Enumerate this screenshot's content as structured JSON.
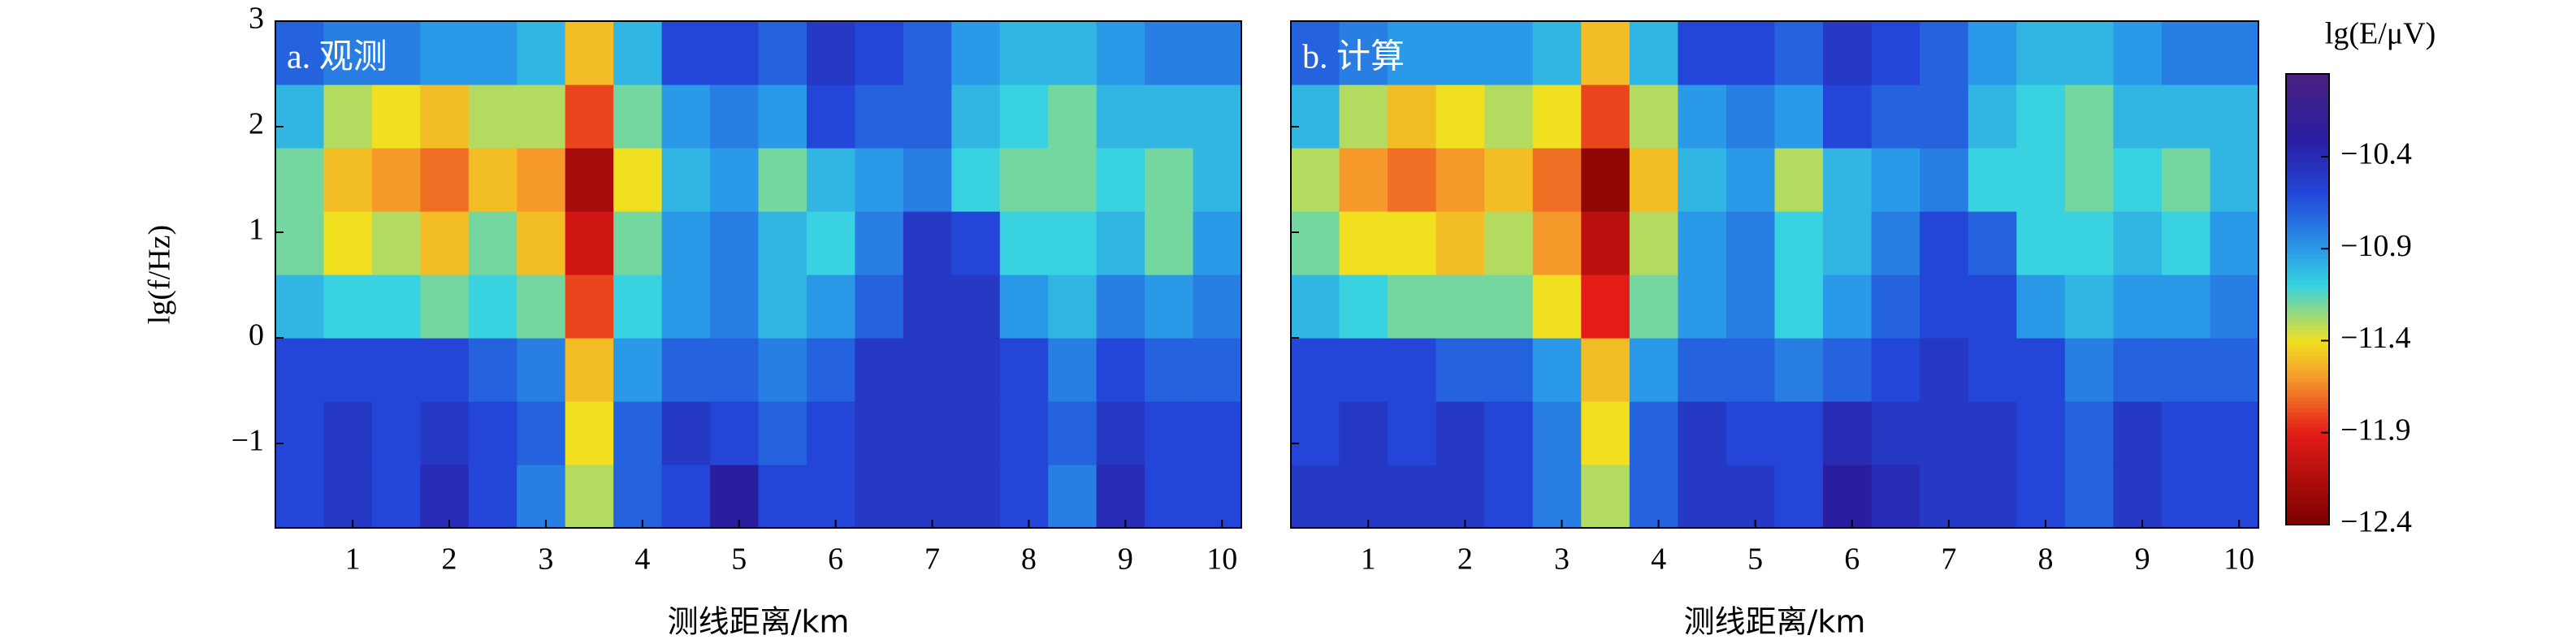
{
  "chart_data": [
    {
      "type": "heatmap",
      "label": "a. 观测",
      "xlabel": "测线距离/km",
      "ylabel": "lg(f/Hz)",
      "xlim": [
        0.2,
        10.2
      ],
      "xticks": [
        1,
        2,
        3,
        4,
        5,
        6,
        7,
        8,
        9,
        10
      ],
      "ylim": [
        -1.8,
        3
      ],
      "yticks": [
        {
          "value": -1,
          "label": "−1"
        },
        0,
        1,
        2,
        3
      ],
      "x": [
        0.45,
        0.95,
        1.45,
        1.95,
        2.45,
        2.95,
        3.45,
        3.95,
        4.45,
        4.95,
        5.45,
        5.95,
        6.45,
        6.95,
        7.45,
        7.95,
        8.45,
        8.95,
        9.45,
        9.95
      ],
      "y": [
        -1.5,
        -0.9,
        -0.3,
        0.3,
        0.9,
        1.5,
        2.1,
        2.7
      ],
      "z": [
        [
          -10.6,
          -10.5,
          -10.6,
          -10.4,
          -10.6,
          -10.8,
          -11.3,
          -10.7,
          -10.6,
          -10.3,
          -10.6,
          -10.6,
          -10.5,
          -10.5,
          -10.5,
          -10.6,
          -10.8,
          -10.4,
          -10.6,
          -10.6
        ],
        [
          -10.6,
          -10.5,
          -10.6,
          -10.5,
          -10.6,
          -10.7,
          -11.4,
          -10.7,
          -10.5,
          -10.6,
          -10.7,
          -10.6,
          -10.5,
          -10.5,
          -10.5,
          -10.6,
          -10.7,
          -10.5,
          -10.6,
          -10.6
        ],
        [
          -10.6,
          -10.6,
          -10.6,
          -10.6,
          -10.7,
          -10.8,
          -11.5,
          -10.9,
          -10.7,
          -10.7,
          -10.8,
          -10.7,
          -10.5,
          -10.5,
          -10.5,
          -10.6,
          -10.8,
          -10.6,
          -10.7,
          -10.7
        ],
        [
          -11.0,
          -11.1,
          -11.1,
          -11.2,
          -11.1,
          -11.2,
          -11.8,
          -11.1,
          -10.9,
          -10.8,
          -11.0,
          -10.9,
          -10.7,
          -10.5,
          -10.5,
          -10.9,
          -11.0,
          -10.8,
          -10.9,
          -10.8
        ],
        [
          -11.2,
          -11.4,
          -11.3,
          -11.5,
          -11.2,
          -11.5,
          -12.0,
          -11.2,
          -10.9,
          -10.8,
          -11.0,
          -11.1,
          -10.8,
          -10.5,
          -10.6,
          -11.1,
          -11.1,
          -11.0,
          -11.2,
          -10.9
        ],
        [
          -11.2,
          -11.5,
          -11.6,
          -11.7,
          -11.5,
          -11.6,
          -12.2,
          -11.4,
          -11.0,
          -10.9,
          -11.2,
          -11.0,
          -10.9,
          -10.8,
          -11.1,
          -11.2,
          -11.2,
          -11.1,
          -11.2,
          -11.0
        ],
        [
          -11.0,
          -11.3,
          -11.4,
          -11.5,
          -11.3,
          -11.3,
          -11.8,
          -11.2,
          -10.9,
          -10.8,
          -10.9,
          -10.6,
          -10.7,
          -10.7,
          -11.0,
          -11.1,
          -11.2,
          -11.0,
          -11.0,
          -11.0
        ],
        [
          -10.7,
          -10.8,
          -10.8,
          -10.9,
          -10.9,
          -11.0,
          -11.5,
          -11.0,
          -10.6,
          -10.6,
          -10.7,
          -10.5,
          -10.6,
          -10.7,
          -10.9,
          -11.0,
          -11.0,
          -10.9,
          -10.8,
          -10.8
        ]
      ]
    },
    {
      "type": "heatmap",
      "label": "b. 计算",
      "xlabel": "测线距离/km",
      "xlim": [
        0.2,
        10.2
      ],
      "xticks": [
        1,
        2,
        3,
        4,
        5,
        6,
        7,
        8,
        9,
        10
      ],
      "ylim": [
        -1.8,
        3
      ],
      "x": [
        0.45,
        0.95,
        1.45,
        1.95,
        2.45,
        2.95,
        3.45,
        3.95,
        4.45,
        4.95,
        5.45,
        5.95,
        6.45,
        6.95,
        7.45,
        7.95,
        8.45,
        8.95,
        9.45,
        9.95
      ],
      "y": [
        -1.5,
        -0.9,
        -0.3,
        0.3,
        0.9,
        1.5,
        2.1,
        2.7
      ],
      "z": [
        [
          -10.5,
          -10.5,
          -10.5,
          -10.5,
          -10.6,
          -10.8,
          -11.3,
          -10.7,
          -10.5,
          -10.5,
          -10.6,
          -10.3,
          -10.4,
          -10.5,
          -10.5,
          -10.6,
          -10.7,
          -10.5,
          -10.6,
          -10.6
        ],
        [
          -10.6,
          -10.5,
          -10.6,
          -10.5,
          -10.6,
          -10.8,
          -11.4,
          -10.7,
          -10.5,
          -10.6,
          -10.6,
          -10.4,
          -10.5,
          -10.5,
          -10.5,
          -10.6,
          -10.7,
          -10.5,
          -10.6,
          -10.6
        ],
        [
          -10.6,
          -10.6,
          -10.6,
          -10.7,
          -10.7,
          -10.9,
          -11.5,
          -10.9,
          -10.7,
          -10.7,
          -10.8,
          -10.7,
          -10.6,
          -10.5,
          -10.6,
          -10.6,
          -10.8,
          -10.7,
          -10.7,
          -10.7
        ],
        [
          -11.0,
          -11.1,
          -11.2,
          -11.2,
          -11.2,
          -11.4,
          -11.9,
          -11.2,
          -10.9,
          -10.8,
          -11.1,
          -10.9,
          -10.7,
          -10.6,
          -10.6,
          -10.9,
          -11.0,
          -10.9,
          -10.9,
          -10.8
        ],
        [
          -11.2,
          -11.4,
          -11.4,
          -11.5,
          -11.3,
          -11.6,
          -12.1,
          -11.3,
          -10.9,
          -10.8,
          -11.1,
          -11.0,
          -10.8,
          -10.6,
          -10.7,
          -11.1,
          -11.1,
          -11.0,
          -11.1,
          -10.9
        ],
        [
          -11.3,
          -11.6,
          -11.7,
          -11.6,
          -11.5,
          -11.7,
          -12.3,
          -11.5,
          -11.0,
          -10.9,
          -11.3,
          -11.0,
          -10.9,
          -10.8,
          -11.1,
          -11.1,
          -11.2,
          -11.1,
          -11.2,
          -11.0
        ],
        [
          -11.0,
          -11.3,
          -11.5,
          -11.4,
          -11.3,
          -11.4,
          -11.8,
          -11.3,
          -10.9,
          -10.8,
          -10.9,
          -10.6,
          -10.7,
          -10.7,
          -11.0,
          -11.1,
          -11.2,
          -11.0,
          -11.0,
          -11.0
        ],
        [
          -10.7,
          -10.8,
          -10.9,
          -10.9,
          -10.9,
          -11.0,
          -11.5,
          -11.0,
          -10.6,
          -10.6,
          -10.7,
          -10.5,
          -10.6,
          -10.7,
          -10.9,
          -11.0,
          -11.0,
          -10.9,
          -10.8,
          -10.8
        ]
      ]
    },
    {
      "type": "colorbar",
      "title": "lg(E/μV)",
      "zlim": [
        -12.4,
        -9.95
      ],
      "zticks": [
        {
          "value": -10.4,
          "label": "−10.4"
        },
        {
          "value": -10.9,
          "label": "−10.9"
        },
        {
          "value": -11.4,
          "label": "−11.4"
        },
        {
          "value": -11.9,
          "label": "−11.9"
        },
        {
          "value": -12.4,
          "label": "−12.4"
        }
      ],
      "colorscale": [
        [
          -12.4,
          "#7a0000"
        ],
        [
          -11.9,
          "#e41c18"
        ],
        [
          -11.6,
          "#f59a2a"
        ],
        [
          -11.4,
          "#f0e020"
        ],
        [
          -11.1,
          "#38d2e0"
        ],
        [
          -10.9,
          "#2a9ae8"
        ],
        [
          -10.6,
          "#2346d8"
        ],
        [
          -10.3,
          "#2a1ea0"
        ],
        [
          -9.95,
          "#4a2080"
        ]
      ]
    }
  ]
}
